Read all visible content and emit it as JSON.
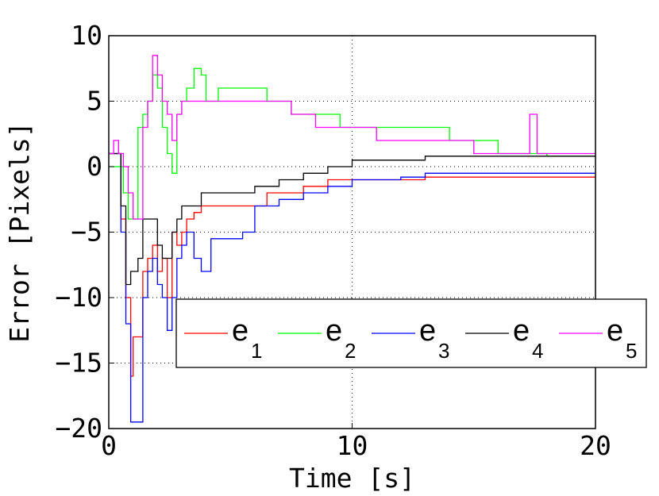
{
  "chart_data": {
    "type": "line",
    "xlabel": "Time [s]",
    "ylabel": "Error [Pixels]",
    "xlim": [
      0,
      20
    ],
    "ylim": [
      -20,
      10
    ],
    "xticks": [
      0,
      10,
      20
    ],
    "yticks": [
      -20,
      -15,
      -10,
      -5,
      0,
      5,
      10
    ],
    "grid": true,
    "legend_position": "lower-right",
    "series": [
      {
        "name": "e",
        "subscript": "1",
        "color": "#ff0000",
        "x": [
          0,
          0.3,
          0.5,
          0.7,
          0.9,
          1.0,
          1.2,
          1.4,
          1.6,
          1.8,
          2.0,
          2.2,
          2.4,
          2.6,
          2.8,
          3.0,
          3.2,
          3.5,
          3.8,
          4.2,
          4.6,
          5.0,
          5.5,
          6.0,
          6.5,
          7.0,
          7.5,
          8.0,
          8.5,
          9.0,
          10,
          11,
          12,
          13,
          14,
          15,
          16,
          17,
          18,
          19,
          20
        ],
        "y": [
          1,
          1,
          -4,
          -10,
          -16,
          -13,
          -13,
          -8,
          -7,
          -6,
          -8,
          -7,
          -10,
          -5,
          -6,
          -5,
          -4,
          -3.5,
          -3,
          -3,
          -3,
          -3,
          -3,
          -3,
          -2,
          -2,
          -2,
          -1.5,
          -1.5,
          -1,
          -1,
          -1,
          -1,
          -0.8,
          -0.8,
          -0.8,
          -0.8,
          -0.8,
          -0.8,
          -0.8,
          -0.8
        ]
      },
      {
        "name": "e",
        "subscript": "2",
        "color": "#00ff00",
        "x": [
          0,
          0.3,
          0.6,
          0.8,
          1.0,
          1.2,
          1.4,
          1.6,
          1.8,
          2.0,
          2.2,
          2.4,
          2.6,
          2.8,
          3.0,
          3.2,
          3.5,
          3.8,
          4.0,
          4.5,
          5.0,
          5.5,
          6.0,
          6.5,
          7.0,
          7.5,
          8.0,
          8.5,
          9.0,
          9.5,
          10,
          11,
          12,
          13,
          14,
          15,
          16,
          17,
          18,
          19,
          20
        ],
        "y": [
          0,
          0,
          -2,
          -4,
          -4,
          3,
          4,
          5,
          7,
          6,
          3,
          1,
          -0.5,
          4,
          5,
          6,
          7.5,
          7,
          5,
          6,
          6,
          6,
          6,
          5,
          5,
          4,
          4,
          4,
          4,
          3,
          3,
          3,
          3,
          3,
          2,
          2,
          1,
          1,
          0.8,
          0.8,
          0.8
        ]
      },
      {
        "name": "e",
        "subscript": "3",
        "color": "#0000ff",
        "x": [
          0,
          0.3,
          0.5,
          0.7,
          0.9,
          1.0,
          1.2,
          1.4,
          1.6,
          1.8,
          2.0,
          2.2,
          2.4,
          2.6,
          2.8,
          3.0,
          3.2,
          3.5,
          3.8,
          4.2,
          4.6,
          5.0,
          5.5,
          6.0,
          6.5,
          7.0,
          7.5,
          8.0,
          8.5,
          9.0,
          10,
          11,
          12,
          13,
          14,
          15,
          16,
          17,
          18,
          19,
          20
        ],
        "y": [
          1,
          1,
          -5,
          -12,
          -19.5,
          -19.5,
          -19.5,
          -10,
          -8,
          -7,
          -9,
          -10,
          -12.5,
          -10,
          -7,
          -6,
          -5,
          -7,
          -8,
          -5.5,
          -5.5,
          -5.5,
          -5,
          -3,
          -3,
          -2.5,
          -2.5,
          -2,
          -2,
          -1.5,
          -1,
          -1,
          -0.8,
          -0.5,
          -0.5,
          -0.5,
          -0.5,
          -0.5,
          -0.5,
          -0.5,
          -0.5
        ]
      },
      {
        "name": "e",
        "subscript": "4",
        "color": "#000000",
        "x": [
          0,
          0.3,
          0.5,
          0.7,
          0.9,
          1.0,
          1.2,
          1.4,
          1.6,
          1.8,
          2.0,
          2.2,
          2.4,
          2.6,
          2.8,
          3.0,
          3.2,
          3.5,
          3.8,
          4.2,
          4.6,
          5.0,
          5.5,
          6.0,
          6.5,
          7.0,
          7.5,
          8.0,
          8.5,
          9.0,
          10,
          11,
          12,
          13,
          14,
          15,
          16,
          17,
          18,
          19,
          20
        ],
        "y": [
          1,
          1,
          -3,
          -9,
          -8,
          -8,
          -7,
          -4,
          -4,
          -4,
          -6,
          -7,
          -7,
          -5,
          -4,
          -3,
          -3,
          -3,
          -2,
          -2,
          -2,
          -2,
          -2,
          -1.5,
          -1.5,
          -1,
          -1,
          -0.5,
          -0.5,
          0,
          0.5,
          0.5,
          0.5,
          0.8,
          0.8,
          0.8,
          0.8,
          0.8,
          0.8,
          0.8,
          0.8
        ]
      },
      {
        "name": "e",
        "subscript": "5",
        "color": "#ff00ff",
        "x": [
          0,
          0.2,
          0.4,
          0.6,
          0.8,
          1.0,
          1.2,
          1.4,
          1.6,
          1.8,
          2.0,
          2.2,
          2.4,
          2.6,
          2.8,
          3.0,
          3.2,
          3.5,
          3.8,
          4.0,
          4.5,
          5.0,
          5.5,
          6.0,
          6.5,
          7.0,
          7.5,
          8.0,
          8.5,
          9.0,
          10,
          11,
          12,
          13,
          14,
          15,
          16,
          17,
          17.3,
          17.6,
          18,
          19,
          20
        ],
        "y": [
          1,
          2,
          1,
          0,
          -2,
          -4,
          -4,
          3,
          5,
          8.5,
          7,
          5,
          4,
          2,
          4,
          5,
          5,
          5,
          5,
          5,
          5,
          5,
          5,
          5,
          5,
          5,
          4,
          4,
          3,
          3,
          3,
          2,
          2,
          2,
          2,
          1,
          1,
          1,
          4,
          1,
          1,
          1,
          1
        ]
      }
    ]
  }
}
